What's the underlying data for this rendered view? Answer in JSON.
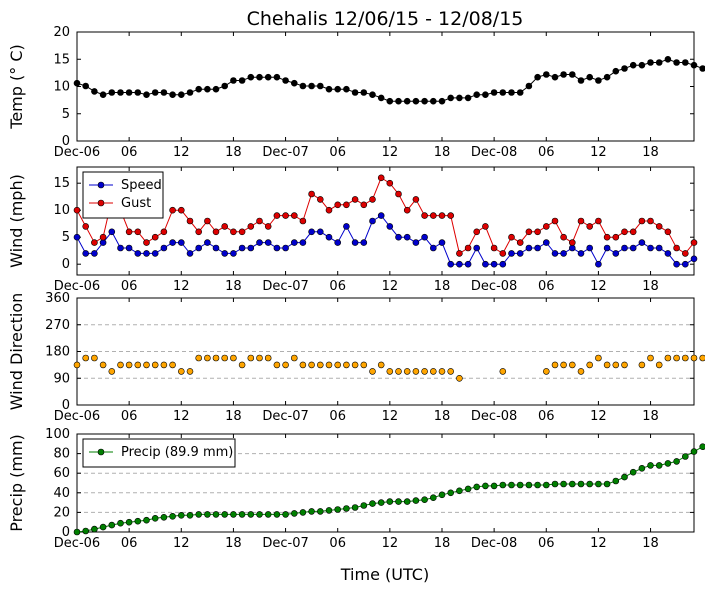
{
  "title": "Chehalis 12/06/15 - 12/08/15",
  "xlabel": "Time (UTC)",
  "x_ticks": [
    "Dec-06",
    "06",
    "12",
    "18",
    "Dec-07",
    "06",
    "12",
    "18",
    "Dec-08",
    "06",
    "12",
    "18"
  ],
  "x_tick_hours": [
    0,
    6,
    12,
    18,
    24,
    30,
    36,
    42,
    48,
    54,
    60,
    66
  ],
  "x_range_hours": [
    0,
    71
  ],
  "colors": {
    "temp": "#000000",
    "speed": "#0000cc",
    "gust": "#dd0000",
    "direction": "#ffa500",
    "precip": "#007f00"
  },
  "chart_data": [
    {
      "type": "line",
      "id": "temp",
      "ylabel": "Temp (° C)",
      "ylim": [
        0,
        20
      ],
      "yticks": [
        0,
        5,
        10,
        15,
        20
      ],
      "grid": false,
      "series": [
        {
          "key": "temp",
          "values": [
            10.6,
            10.1,
            9.1,
            8.5,
            8.9,
            8.9,
            8.9,
            8.9,
            8.5,
            8.9,
            8.9,
            8.5,
            8.5,
            8.9,
            9.5,
            9.5,
            9.5,
            10.1,
            11.1,
            11.1,
            11.7,
            11.7,
            11.7,
            11.7,
            11.1,
            10.6,
            10.1,
            10.1,
            10.1,
            9.5,
            9.5,
            9.5,
            8.9,
            8.9,
            8.5,
            7.9,
            7.3,
            7.3,
            7.3,
            7.3,
            7.3,
            7.3,
            7.3,
            7.9,
            7.9,
            7.9,
            8.5,
            8.5,
            8.9,
            8.9,
            8.9,
            8.9,
            10.1,
            11.7,
            12.2,
            11.7,
            12.2,
            12.2,
            11.1,
            11.7,
            11.1,
            11.7,
            12.8,
            13.3,
            13.9,
            13.9,
            14.4,
            14.4,
            15.0,
            14.4,
            14.4,
            13.9,
            13.3
          ]
        }
      ]
    },
    {
      "type": "line",
      "id": "wind",
      "ylabel": "Wind (mph)",
      "ylim": [
        -2,
        18
      ],
      "yticks": [
        0,
        5,
        10,
        15
      ],
      "grid": false,
      "legend": {
        "placement": "top-left",
        "entries": [
          {
            "label": "Speed",
            "key": "speed"
          },
          {
            "label": "Gust",
            "key": "gust"
          }
        ]
      },
      "series": [
        {
          "key": "speed",
          "values": [
            5,
            2,
            2,
            4,
            6,
            3,
            3,
            2,
            2,
            2,
            3,
            4,
            4,
            2,
            3,
            4,
            3,
            2,
            2,
            3,
            3,
            4,
            4,
            3,
            3,
            4,
            4,
            6,
            6,
            5,
            4,
            7,
            4,
            4,
            8,
            9,
            7,
            5,
            5,
            4,
            5,
            3,
            4,
            0,
            0,
            0,
            3,
            0,
            0,
            0,
            2,
            2,
            3,
            3,
            4,
            2,
            2,
            3,
            2,
            3,
            0,
            3,
            2,
            3,
            3,
            4,
            3,
            3,
            2,
            0,
            0,
            1
          ]
        },
        {
          "key": "gust",
          "values": [
            10,
            7,
            4,
            5,
            12,
            10,
            6,
            6,
            4,
            5,
            6,
            10,
            10,
            8,
            6,
            8,
            6,
            7,
            6,
            6,
            7,
            8,
            7,
            9,
            9,
            9,
            8,
            13,
            12,
            10,
            11,
            11,
            12,
            11,
            12,
            16,
            15,
            13,
            10,
            12,
            9,
            9,
            9,
            9,
            2,
            3,
            6,
            7,
            3,
            2,
            5,
            4,
            6,
            6,
            7,
            8,
            5,
            4,
            8,
            7,
            8,
            5,
            5,
            6,
            6,
            8,
            8,
            7,
            6,
            3,
            2,
            4
          ]
        }
      ]
    },
    {
      "type": "scatter",
      "id": "direction",
      "ylabel": "Wind Direction",
      "ylim": [
        0,
        360
      ],
      "yticks": [
        0,
        90,
        180,
        270,
        360
      ],
      "grid": true,
      "series": [
        {
          "key": "direction",
          "values": [
            135,
            158,
            158,
            135,
            113,
            135,
            135,
            135,
            135,
            135,
            135,
            135,
            113,
            113,
            158,
            158,
            158,
            158,
            158,
            135,
            158,
            158,
            158,
            135,
            135,
            158,
            135,
            135,
            135,
            135,
            135,
            135,
            135,
            135,
            113,
            135,
            113,
            113,
            113,
            113,
            113,
            113,
            113,
            113,
            90,
            null,
            null,
            null,
            null,
            113,
            null,
            null,
            null,
            null,
            113,
            135,
            135,
            135,
            113,
            135,
            158,
            135,
            135,
            135,
            null,
            135,
            158,
            135,
            158,
            158,
            158,
            158,
            158,
            null,
            null,
            135
          ]
        }
      ]
    },
    {
      "type": "line",
      "id": "precip",
      "ylabel": "Precip (mm)",
      "ylim": [
        0,
        100
      ],
      "yticks": [
        0,
        20,
        40,
        60,
        80,
        100
      ],
      "grid": true,
      "legend": {
        "placement": "top-left",
        "entries": [
          {
            "label": "Precip (89.9 mm)",
            "key": "precip"
          }
        ]
      },
      "series": [
        {
          "key": "precip",
          "values": [
            0,
            1,
            3,
            5,
            7,
            9,
            10,
            11,
            12,
            14,
            15,
            16,
            17,
            17,
            18,
            18,
            18,
            18,
            18,
            18,
            18,
            18,
            18,
            18,
            18,
            19,
            20,
            21,
            21,
            22,
            23,
            24,
            25,
            27,
            29,
            30,
            31,
            31,
            31,
            32,
            33,
            35,
            38,
            40,
            42,
            44,
            46,
            47,
            47,
            48,
            48,
            48,
            48,
            48,
            48,
            49,
            49,
            49,
            49,
            49,
            49,
            49,
            52,
            56,
            61,
            65,
            68,
            68,
            70,
            72,
            77,
            82,
            87,
            89.9
          ]
        }
      ]
    }
  ]
}
